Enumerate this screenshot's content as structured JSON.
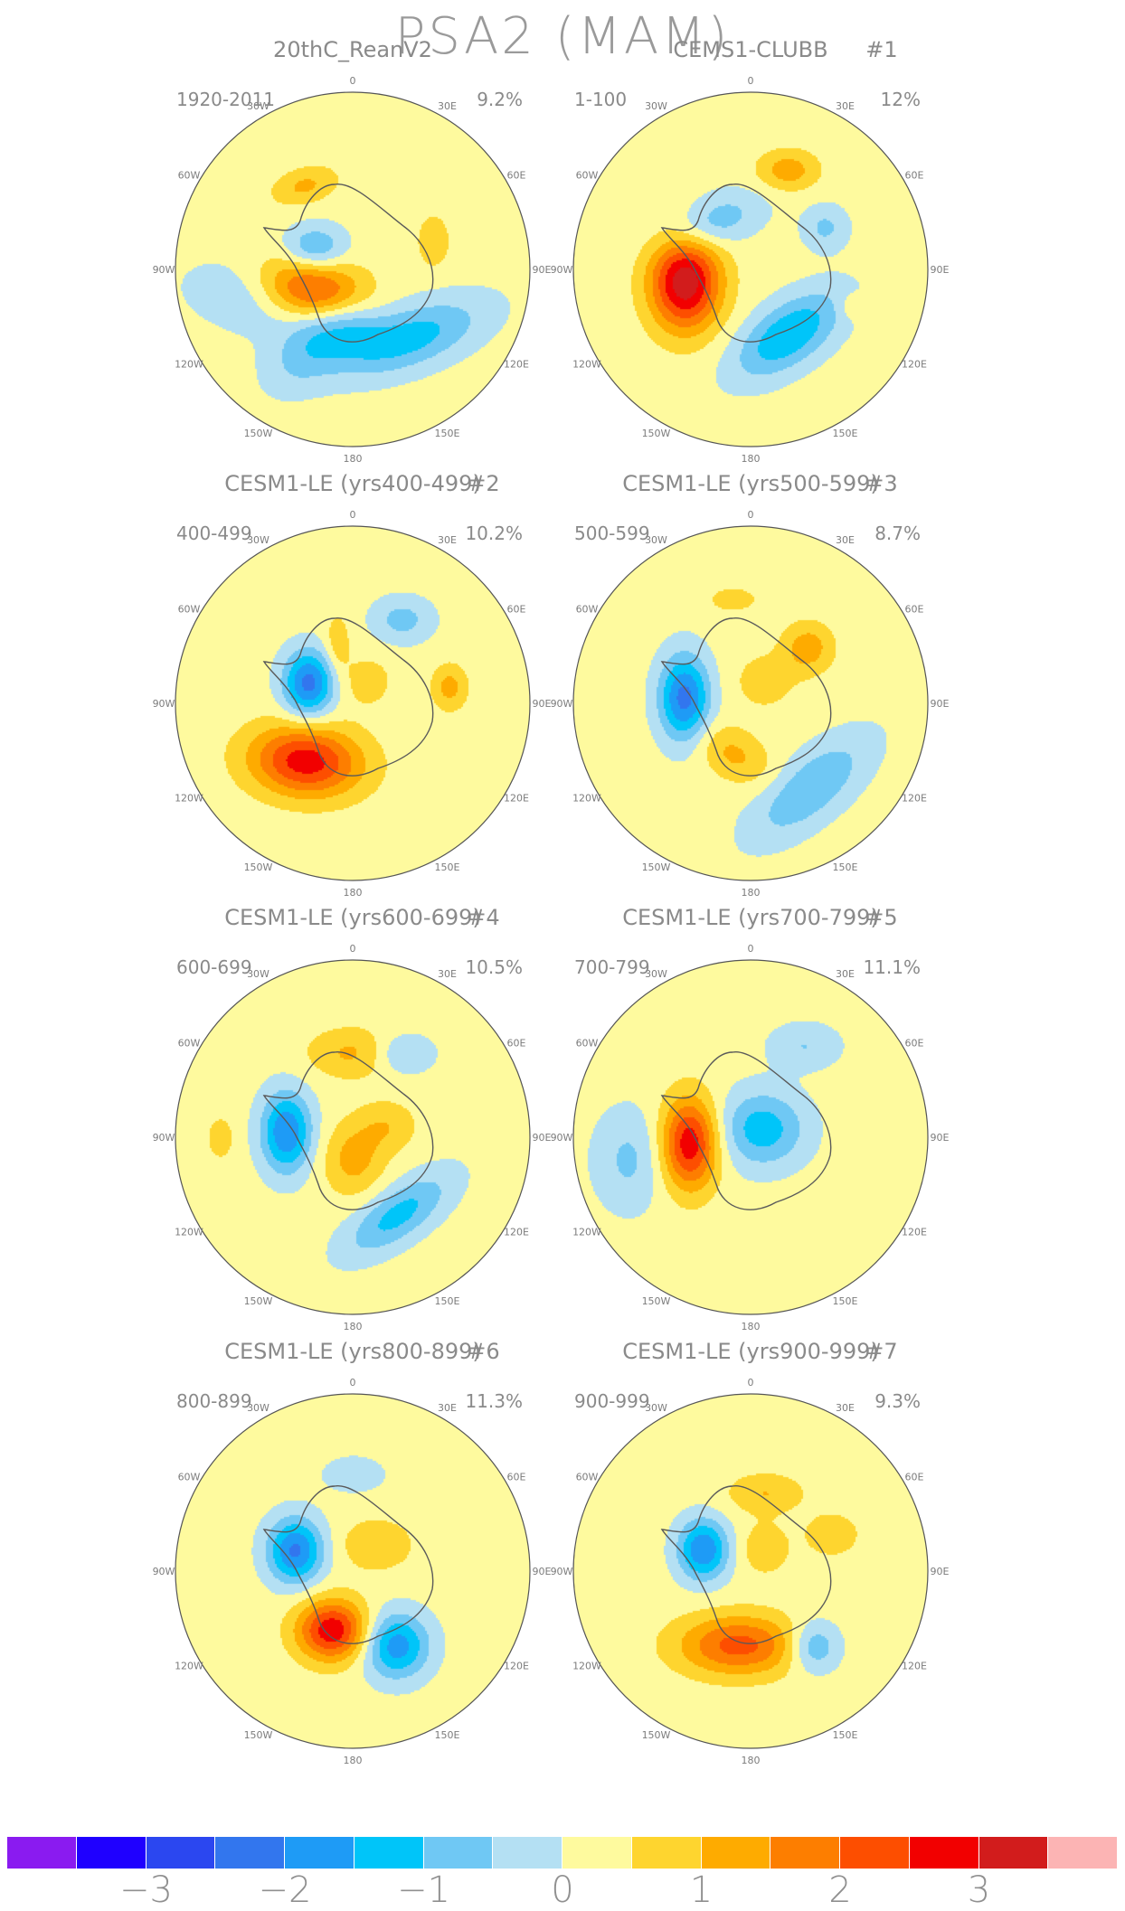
{
  "title": "PSA2 (MAM)",
  "longitude_labels": [
    "0",
    "30E",
    "60E",
    "90E",
    "120E",
    "150E",
    "180",
    "150W",
    "120W",
    "90W",
    "60W",
    "30W"
  ],
  "panels": [
    {
      "title": "20thC_ReanV2",
      "number": "",
      "period": "1920-2011",
      "variance": "9.2%",
      "blobs": [
        {
          "lon": -119,
          "r": 0.27,
          "v": 2.9,
          "sx": 0.22,
          "sy": 0.13,
          "rot": 10
        },
        {
          "lon": -115,
          "r": 0.42,
          "v": -1.2,
          "sx": 0.32,
          "sy": 0.14,
          "rot": 10
        },
        {
          "lon": -150,
          "r": 0.55,
          "v": -0.8,
          "sx": 0.18,
          "sy": 0.12,
          "rot": -40
        },
        {
          "lon": -170,
          "r": 0.32,
          "v": -1.0,
          "sx": 0.16,
          "sy": 0.12,
          "rot": 0
        },
        {
          "lon": 140,
          "r": 0.5,
          "v": -1.4,
          "sx": 0.3,
          "sy": 0.12,
          "rot": -20
        },
        {
          "lon": -60,
          "r": 0.25,
          "v": -1.3,
          "sx": 0.12,
          "sy": 0.09,
          "rot": 0
        },
        {
          "lon": -30,
          "r": 0.55,
          "v": 0.9,
          "sx": 0.13,
          "sy": 0.07,
          "rot": -15
        },
        {
          "lon": 70,
          "r": 0.48,
          "v": 0.8,
          "sx": 0.06,
          "sy": 0.1,
          "rot": 0
        }
      ]
    },
    {
      "title": "CEMS1-CLUBB",
      "number": "#1",
      "period": "1-100",
      "variance": "12%",
      "blobs": [
        {
          "lon": -100,
          "r": 0.38,
          "v": 3.2,
          "sx": 0.14,
          "sy": 0.19,
          "rot": 0
        },
        {
          "lon": 150,
          "r": 0.42,
          "v": -1.7,
          "sx": 0.24,
          "sy": 0.12,
          "rot": -35
        },
        {
          "lon": -40,
          "r": 0.35,
          "v": -1.1,
          "sx": 0.2,
          "sy": 0.1,
          "rot": -20
        },
        {
          "lon": 20,
          "r": 0.6,
          "v": 1.1,
          "sx": 0.12,
          "sy": 0.08,
          "rot": 0
        },
        {
          "lon": 60,
          "r": 0.48,
          "v": -0.8,
          "sx": 0.09,
          "sy": 0.09,
          "rot": 0
        },
        {
          "lon": 110,
          "r": 0.6,
          "v": 0.5,
          "sx": 0.05,
          "sy": 0.05,
          "rot": 0
        }
      ]
    },
    {
      "title": "CESM1-LE (yrs400-499)",
      "number": "#2",
      "period": "400-499",
      "variance": "10.2%",
      "blobs": [
        {
          "lon": -140,
          "r": 0.42,
          "v": 2.6,
          "sx": 0.22,
          "sy": 0.14,
          "rot": 5
        },
        {
          "lon": -65,
          "r": 0.28,
          "v": -2.4,
          "sx": 0.1,
          "sy": 0.13,
          "rot": 0
        },
        {
          "lon": 30,
          "r": 0.55,
          "v": -0.9,
          "sx": 0.12,
          "sy": 0.09,
          "rot": 0
        },
        {
          "lon": 80,
          "r": 0.55,
          "v": 1.0,
          "sx": 0.07,
          "sy": 0.09,
          "rot": 0
        },
        {
          "lon": -15,
          "r": 0.35,
          "v": 0.7,
          "sx": 0.05,
          "sy": 0.12,
          "rot": 0
        },
        {
          "lon": 30,
          "r": 0.15,
          "v": 0.6,
          "sx": 0.1,
          "sy": 0.1,
          "rot": 0
        }
      ]
    },
    {
      "title": "CESM1-LE (yrs500-599)",
      "number": "#3",
      "period": "500-599",
      "variance": "8.7%",
      "blobs": [
        {
          "lon": -85,
          "r": 0.38,
          "v": -2.4,
          "sx": 0.1,
          "sy": 0.17,
          "rot": 0
        },
        {
          "lon": 145,
          "r": 0.58,
          "v": -1.2,
          "sx": 0.28,
          "sy": 0.12,
          "rot": -40
        },
        {
          "lon": -160,
          "r": 0.3,
          "v": 0.9,
          "sx": 0.16,
          "sy": 0.1,
          "rot": 30
        },
        {
          "lon": 45,
          "r": 0.45,
          "v": 1.1,
          "sx": 0.1,
          "sy": 0.1,
          "rot": 0
        },
        {
          "lon": 30,
          "r": 0.15,
          "v": 0.6,
          "sx": 0.12,
          "sy": 0.11,
          "rot": 0
        },
        {
          "lon": -10,
          "r": 0.6,
          "v": 0.6,
          "sx": 0.1,
          "sy": 0.05,
          "rot": 0
        }
      ]
    },
    {
      "title": "CESM1-LE (yrs600-699)",
      "number": "#4",
      "period": "600-699",
      "variance": "10.5%",
      "blobs": [
        {
          "lon": -85,
          "r": 0.38,
          "v": -2.2,
          "sx": 0.1,
          "sy": 0.16,
          "rot": 0
        },
        {
          "lon": 150,
          "r": 0.5,
          "v": -1.4,
          "sx": 0.24,
          "sy": 0.1,
          "rot": -35
        },
        {
          "lon": 180,
          "r": 0.12,
          "v": 1.0,
          "sx": 0.12,
          "sy": 0.14,
          "rot": 0
        },
        {
          "lon": 0,
          "r": 0.48,
          "v": 0.9,
          "sx": 0.18,
          "sy": 0.1,
          "rot": 0
        },
        {
          "lon": 30,
          "r": 0.55,
          "v": -0.9,
          "sx": 0.12,
          "sy": 0.08,
          "rot": 0
        },
        {
          "lon": -90,
          "r": 0.75,
          "v": 0.7,
          "sx": 0.05,
          "sy": 0.08,
          "rot": 0
        },
        {
          "lon": 70,
          "r": 0.2,
          "v": 0.7,
          "sx": 0.12,
          "sy": 0.1,
          "rot": 0
        }
      ]
    },
    {
      "title": "CESM1-LE (yrs700-799)",
      "number": "#5",
      "period": "700-799",
      "variance": "11.1%",
      "blobs": [
        {
          "lon": -95,
          "r": 0.35,
          "v": 2.7,
          "sx": 0.11,
          "sy": 0.18,
          "rot": 0
        },
        {
          "lon": 50,
          "r": 0.08,
          "v": -1.5,
          "sx": 0.17,
          "sy": 0.15,
          "rot": 0
        },
        {
          "lon": -100,
          "r": 0.7,
          "v": -0.8,
          "sx": 0.14,
          "sy": 0.2,
          "rot": 0
        },
        {
          "lon": 30,
          "r": 0.6,
          "v": -0.7,
          "sx": 0.14,
          "sy": 0.09,
          "rot": 0
        }
      ]
    },
    {
      "title": "CESM1-LE (yrs800-899)",
      "number": "#6",
      "period": "800-899",
      "variance": "11.3%",
      "blobs": [
        {
          "lon": -160,
          "r": 0.35,
          "v": 2.7,
          "sx": 0.14,
          "sy": 0.12,
          "rot": 0
        },
        {
          "lon": -70,
          "r": 0.35,
          "v": -2.3,
          "sx": 0.11,
          "sy": 0.13,
          "rot": 0
        },
        {
          "lon": 150,
          "r": 0.48,
          "v": -2.0,
          "sx": 0.13,
          "sy": 0.13,
          "rot": 0
        },
        {
          "lon": 40,
          "r": 0.2,
          "v": 0.8,
          "sx": 0.14,
          "sy": 0.1,
          "rot": 0
        },
        {
          "lon": 0,
          "r": 0.55,
          "v": -0.6,
          "sx": 0.12,
          "sy": 0.07,
          "rot": 0
        }
      ]
    },
    {
      "title": "CESM1-LE (yrs900-999)",
      "number": "#7",
      "period": "900-999",
      "variance": "9.3%",
      "blobs": [
        {
          "lon": -170,
          "r": 0.42,
          "v": 2.0,
          "sx": 0.24,
          "sy": 0.12,
          "rot": 0
        },
        {
          "lon": -65,
          "r": 0.3,
          "v": -2.2,
          "sx": 0.1,
          "sy": 0.12,
          "rot": 0
        },
        {
          "lon": 140,
          "r": 0.55,
          "v": -1.3,
          "sx": 0.1,
          "sy": 0.1,
          "rot": 0
        },
        {
          "lon": 10,
          "r": 0.45,
          "v": 0.8,
          "sx": 0.15,
          "sy": 0.08,
          "rot": 0
        },
        {
          "lon": 65,
          "r": 0.5,
          "v": 0.8,
          "sx": 0.1,
          "sy": 0.08,
          "rot": 0
        },
        {
          "lon": 30,
          "r": 0.15,
          "v": 0.7,
          "sx": 0.1,
          "sy": 0.1,
          "rot": 0
        }
      ]
    }
  ],
  "colorbar": {
    "colors": [
      "#8a1bf0",
      "#1f00ff",
      "#2b47f0",
      "#3276ee",
      "#1e9bf6",
      "#00c5f9",
      "#6fc8f4",
      "#b4e0f3",
      "#fefa9e",
      "#fed52f",
      "#feab00",
      "#fd7e00",
      "#fd4e00",
      "#f20000",
      "#d21c1c",
      "#fcb4b4"
    ],
    "tick_labels": [
      "−3",
      "−2",
      "−1",
      "0",
      "1",
      "2",
      "3"
    ],
    "tick_values": [
      -3,
      -2,
      -1,
      0,
      1,
      2,
      3
    ],
    "levels": [
      -3.5,
      -3,
      -2.5,
      -2,
      -1.5,
      -1,
      -0.5,
      0,
      0.5,
      1,
      1.5,
      2,
      2.5,
      3,
      3.5
    ]
  }
}
